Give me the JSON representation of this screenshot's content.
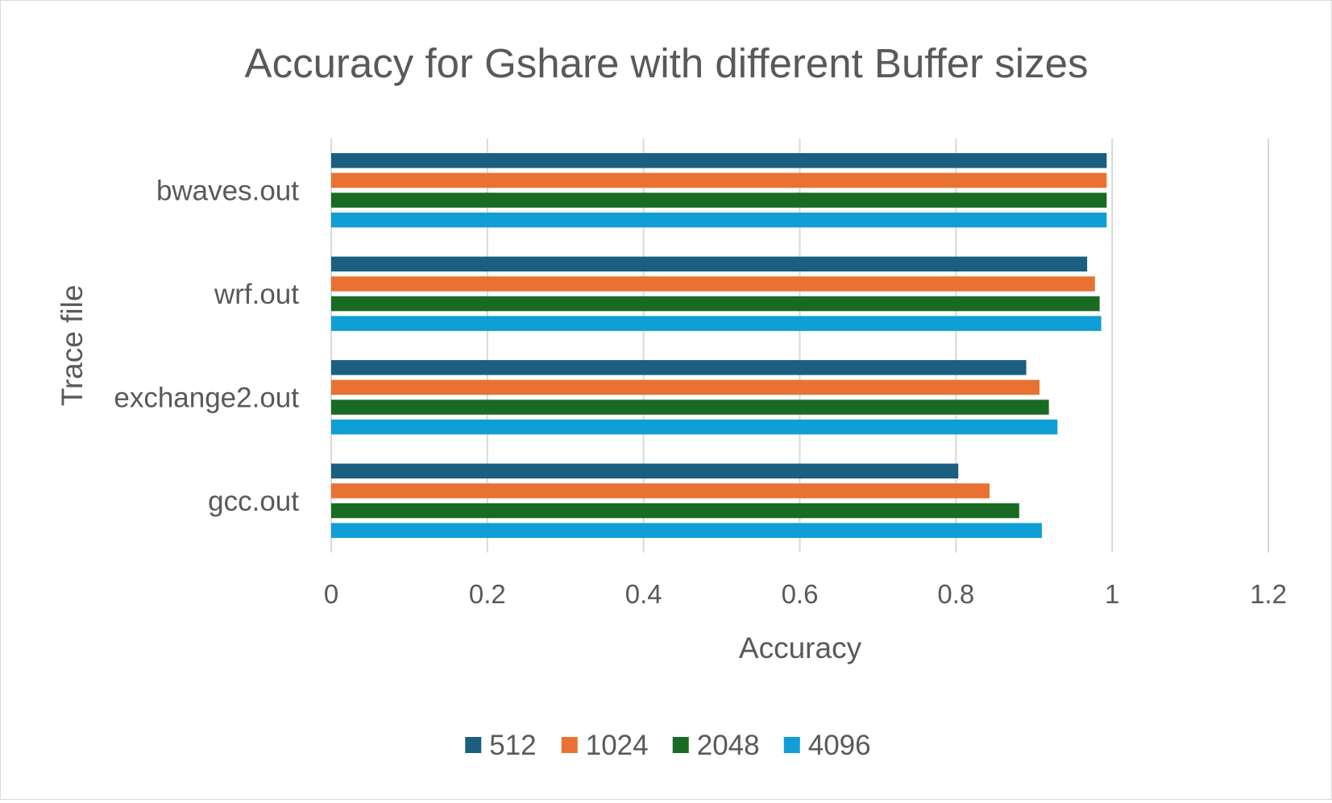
{
  "chart_data": {
    "type": "bar",
    "orientation": "horizontal",
    "title": "Accuracy for Gshare with different Buffer sizes",
    "xlabel": "Accuracy",
    "ylabel": "Trace file",
    "categories": [
      "bwaves.out",
      "wrf.out",
      "exchange2.out",
      "gcc.out"
    ],
    "series": [
      {
        "name": "512",
        "color": "#1a5e80",
        "values": [
          0.993,
          0.968,
          0.89,
          0.803
        ]
      },
      {
        "name": "1024",
        "color": "#e97132",
        "values": [
          0.993,
          0.978,
          0.907,
          0.843
        ]
      },
      {
        "name": "2048",
        "color": "#196b24",
        "values": [
          0.993,
          0.984,
          0.919,
          0.881
        ]
      },
      {
        "name": "4096",
        "color": "#0f9ed5",
        "values": [
          0.993,
          0.986,
          0.93,
          0.91
        ]
      }
    ],
    "xlim": [
      0,
      1.2
    ],
    "xticks": [
      "0",
      "0.2",
      "0.4",
      "0.6",
      "0.8",
      "1",
      "1.2"
    ],
    "grid": true,
    "legend": "bottom"
  }
}
